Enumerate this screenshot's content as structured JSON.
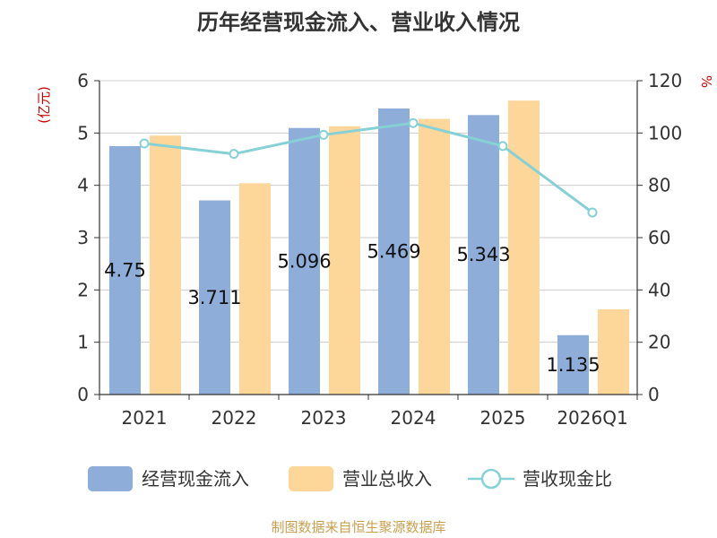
{
  "chart_data": {
    "type": "bar",
    "title": "历年经营现金流入、营业收入情况",
    "categories": [
      "2021",
      "2022",
      "2023",
      "2024",
      "2025",
      "2026Q1"
    ],
    "series": [
      {
        "name": "经营现金流入",
        "kind": "bar",
        "axis": "left",
        "color": "#8eadd9",
        "values": [
          4.75,
          3.711,
          5.096,
          5.469,
          5.343,
          1.135
        ],
        "labels": [
          "4.75",
          "3.711",
          "5.096",
          "5.469",
          "5.343",
          "1.135"
        ]
      },
      {
        "name": "营业总收入",
        "kind": "bar",
        "axis": "left",
        "color": "#fdd799",
        "values": [
          4.95,
          4.04,
          5.13,
          5.27,
          5.62,
          1.63
        ]
      },
      {
        "name": "营收现金比",
        "kind": "line",
        "axis": "right",
        "color": "#86d1d6",
        "values": [
          96,
          92,
          99.3,
          103.8,
          95,
          69.6
        ]
      }
    ],
    "y_left": {
      "label": "(亿元)",
      "min": 0,
      "max": 6,
      "ticks": [
        0,
        1,
        2,
        3,
        4,
        5,
        6
      ]
    },
    "y_right": {
      "label": "%",
      "min": 0,
      "max": 120,
      "ticks": [
        0,
        20,
        40,
        60,
        80,
        100,
        120
      ]
    },
    "grid": true,
    "legend_position": "bottom"
  },
  "source": "制图数据来自恒生聚源数据库",
  "colors": {
    "axis_label": "#cc0000",
    "source": "#c8a050",
    "text": "#333333"
  }
}
